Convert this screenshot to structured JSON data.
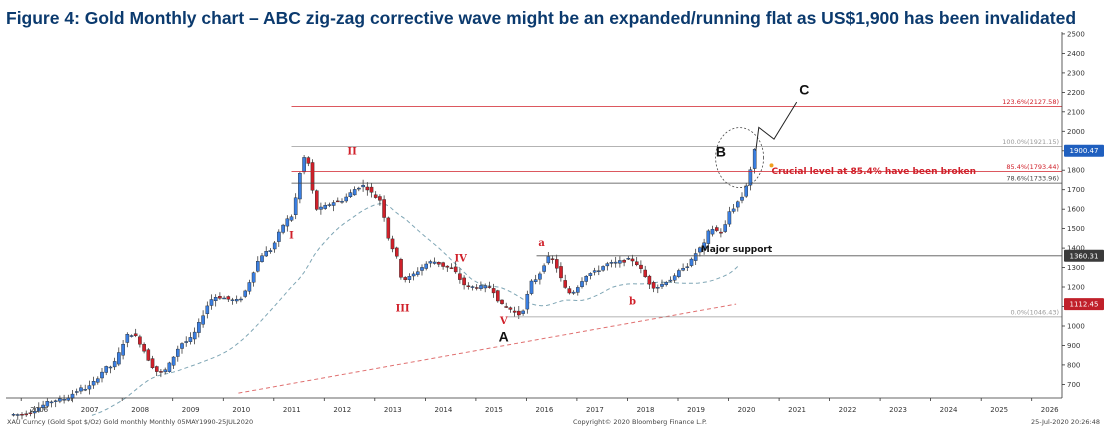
{
  "title": "Figure 4: Gold Monthly chart – ABC zig-zag corrective wave might be an expanded/running flat as US$1,900 has been invalidated",
  "chart_data": {
    "type": "candlestick",
    "x_ticks": [
      "2006",
      "2007",
      "2008",
      "2009",
      "2010",
      "2011",
      "2012",
      "2013",
      "2014",
      "2015",
      "2016",
      "2017",
      "2018",
      "2019",
      "2020",
      "2021",
      "2022",
      "2023",
      "2024",
      "2025",
      "2026"
    ],
    "y_ticks": [
      700,
      800,
      900,
      1000,
      1100,
      1200,
      1300,
      1400,
      1500,
      1600,
      1700,
      1800,
      1900,
      2000,
      2100,
      2200,
      2300,
      2400,
      2500
    ],
    "ylim": [
      630,
      2510
    ],
    "xlim": [
      2005.7,
      2026.6
    ],
    "series": [
      {
        "values": [
          [
            2006.0,
            545
          ],
          [
            2006.8,
            620
          ],
          [
            2007.3,
            680
          ],
          [
            2007.8,
            790
          ],
          [
            2008.2,
            960
          ],
          [
            2008.8,
            760
          ],
          [
            2009.3,
            920
          ],
          [
            2009.9,
            1150
          ],
          [
            2010.3,
            1130
          ],
          [
            2010.9,
            1380
          ],
          [
            2011.35,
            1550
          ],
          [
            2011.67,
            1870
          ],
          [
            2011.9,
            1600
          ],
          [
            2012.3,
            1640
          ],
          [
            2012.8,
            1720
          ],
          [
            2013.1,
            1660
          ],
          [
            2013.4,
            1400
          ],
          [
            2013.6,
            1240
          ],
          [
            2014.2,
            1330
          ],
          [
            2014.5,
            1300
          ],
          [
            2014.9,
            1200
          ],
          [
            2015.3,
            1200
          ],
          [
            2015.6,
            1100
          ],
          [
            2015.9,
            1060
          ],
          [
            2016.2,
            1240
          ],
          [
            2016.5,
            1350
          ],
          [
            2016.9,
            1170
          ],
          [
            2017.3,
            1270
          ],
          [
            2017.7,
            1320
          ],
          [
            2018.1,
            1340
          ],
          [
            2018.6,
            1200
          ],
          [
            2018.9,
            1240
          ],
          [
            2019.2,
            1310
          ],
          [
            2019.5,
            1400
          ],
          [
            2019.7,
            1500
          ],
          [
            2019.9,
            1480
          ],
          [
            2020.1,
            1600
          ],
          [
            2020.25,
            1640
          ],
          [
            2020.42,
            1730
          ],
          [
            2020.54,
            1900
          ]
        ]
      }
    ],
    "fib_levels": [
      {
        "label": "123.6%(2127.58)",
        "value": 2127.58,
        "color": "#d0202a"
      },
      {
        "label": "100.0%(1921.15)",
        "value": 1921.15,
        "color": "#9a9a9a"
      },
      {
        "label": "85.4%(1793.44)",
        "value": 1793.44,
        "color": "#d0202a"
      },
      {
        "label": "78.6%(1733.96)",
        "value": 1733.96,
        "color": "#444444"
      },
      {
        "label": "0.0%(1046.43)",
        "value": 1046.43,
        "color": "#9a9a9a"
      }
    ],
    "support": {
      "label": "Major support",
      "value": 1360.31
    },
    "price_badges": [
      {
        "label": "1900.47",
        "value": 1900.47,
        "color": "#1f5fbf"
      },
      {
        "label": "1360.31",
        "value": 1360.31,
        "color": "#3a3a3a"
      },
      {
        "label": "1112.45",
        "value": 1112.45,
        "color": "#c0202a"
      }
    ],
    "annotations": {
      "note_break": "Crucial level at 85.4% have been broken",
      "waves_red": [
        {
          "label": "II",
          "x": 2012.55,
          "y": 1880
        },
        {
          "label": "I",
          "x": 2011.35,
          "y": 1450
        },
        {
          "label": "IV",
          "x": 2014.7,
          "y": 1330
        },
        {
          "label": "III",
          "x": 2013.55,
          "y": 1075
        },
        {
          "label": "V",
          "x": 2015.55,
          "y": 1010
        },
        {
          "label": "a",
          "x": 2016.3,
          "y": 1410
        },
        {
          "label": "b",
          "x": 2018.1,
          "y": 1110
        }
      ],
      "waves_black": [
        {
          "label": "A",
          "x": 2015.55,
          "y": 920
        },
        {
          "label": "B",
          "x": 2019.85,
          "y": 1870
        },
        {
          "label": "C",
          "x": 2021.5,
          "y": 2190
        }
      ]
    },
    "footer": {
      "left": "XAU Curncy (Gold Spot  $/Oz) Gold monthly  Monthly 05MAY1990-25JUL2020",
      "center": "Copyright© 2020 Bloomberg Finance L.P.",
      "right": "25-Jul-2020 20:26:48"
    },
    "colors": {
      "up": "#3a7ee0",
      "down": "#d0202a",
      "title": "#0b3a6e"
    }
  }
}
